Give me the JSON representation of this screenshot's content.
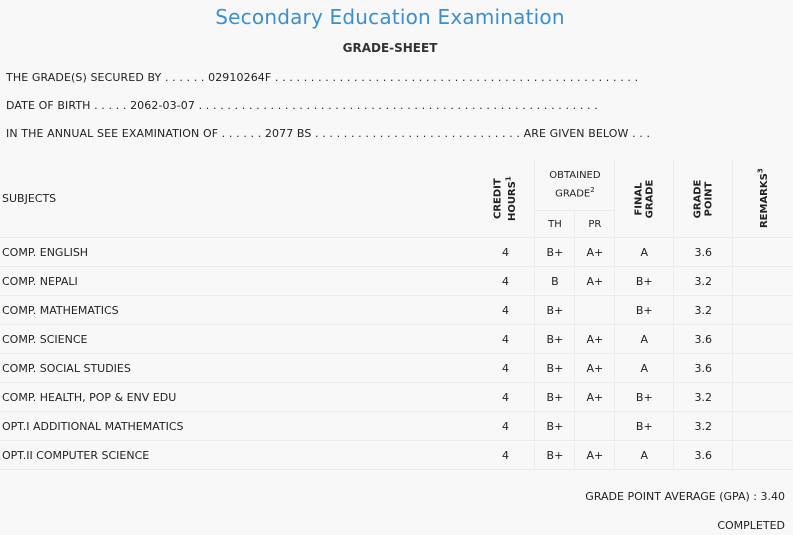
{
  "header": {
    "title": "Secondary Education Examination",
    "subtitle": "GRADE-SHEET"
  },
  "info": {
    "line1": "THE GRADE(S) SECURED BY . . . . . . 02910264F . . . . . . . . . . . . . . . . . . . . . . . . . . . . . . . . . . . . . . . . . . . . . . . . . . .",
    "line2": "DATE OF BIRTH . . . . . 2062-03-07 . . . . . . . . . . . . . . . . . . . . . . . . . . . . . . . . . . . . . . . . . . . . . . . . . . . . . . . .",
    "line3": "IN THE ANNUAL SEE EXAMINATION OF . . . . . . 2077 BS . . . . . . . . . . . . . . . . . . . . . . . . . . . . . ARE GIVEN BELOW . . ."
  },
  "table": {
    "headers": {
      "subjects": "SUBJECTS",
      "credit_line1": "CREDIT",
      "credit_line2": "HOURS",
      "credit_note": "1",
      "obtained_line1": "OBTAINED",
      "obtained_line2": "GRADE",
      "obtained_note": "2",
      "th": "TH",
      "pr": "PR",
      "final_line1": "FINAL",
      "final_line2": "GRADE",
      "gp_line1": "GRADE",
      "gp_line2": "POINT",
      "remarks": "REMARKS",
      "remarks_note": "3"
    },
    "rows": [
      {
        "subject": "COMP. ENGLISH",
        "credit": "4",
        "th": "B+",
        "pr": "A+",
        "final": "A",
        "gp": "3.6",
        "remarks": ""
      },
      {
        "subject": "COMP. NEPALI",
        "credit": "4",
        "th": "B",
        "pr": "A+",
        "final": "B+",
        "gp": "3.2",
        "remarks": ""
      },
      {
        "subject": "COMP. MATHEMATICS",
        "credit": "4",
        "th": "B+",
        "pr": "",
        "final": "B+",
        "gp": "3.2",
        "remarks": ""
      },
      {
        "subject": "COMP. SCIENCE",
        "credit": "4",
        "th": "B+",
        "pr": "A+",
        "final": "A",
        "gp": "3.6",
        "remarks": ""
      },
      {
        "subject": "COMP. SOCIAL STUDIES",
        "credit": "4",
        "th": "B+",
        "pr": "A+",
        "final": "A",
        "gp": "3.6",
        "remarks": ""
      },
      {
        "subject": "COMP. HEALTH, POP & ENV EDU",
        "credit": "4",
        "th": "B+",
        "pr": "A+",
        "final": "B+",
        "gp": "3.2",
        "remarks": ""
      },
      {
        "subject": "OPT.I ADDITIONAL MATHEMATICS",
        "credit": "4",
        "th": "B+",
        "pr": "",
        "final": "B+",
        "gp": "3.2",
        "remarks": ""
      },
      {
        "subject": "OPT.II COMPUTER SCIENCE",
        "credit": "4",
        "th": "B+",
        "pr": "A+",
        "final": "A",
        "gp": "3.6",
        "remarks": ""
      }
    ]
  },
  "footer": {
    "gpa": "GRADE POINT AVERAGE (GPA) : 3.40",
    "status": "COMPLETED"
  },
  "colors": {
    "title": "#3a8fd0",
    "background": "#f8f8f8",
    "border": "#ececec"
  }
}
